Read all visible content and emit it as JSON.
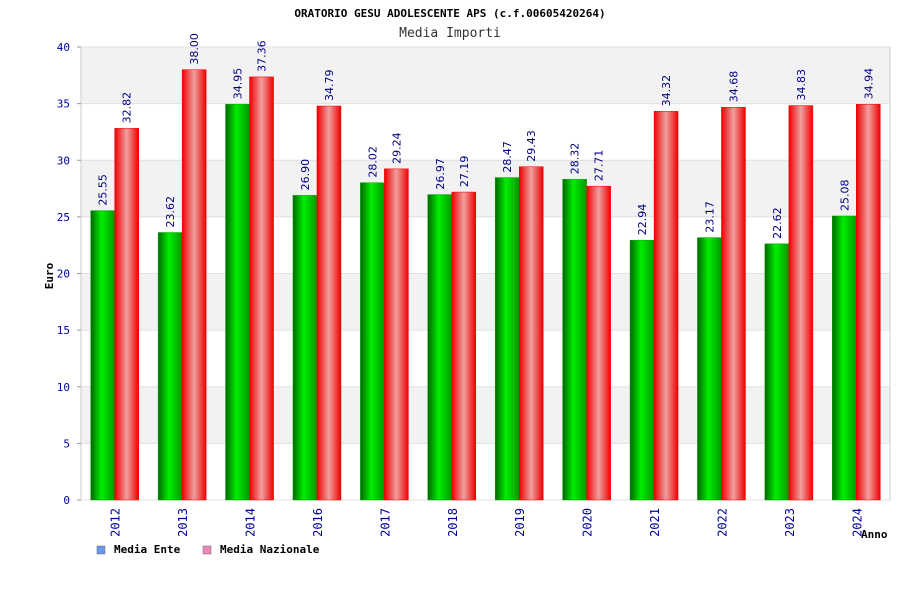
{
  "chart_data": {
    "type": "bar",
    "title": "ORATORIO GESU ADOLESCENTE APS (c.f.00605420264)",
    "subtitle": "Media Importi",
    "xlabel": "Anno",
    "ylabel": "Euro",
    "ylim": [
      0,
      40
    ],
    "yticks": [
      "0",
      "5",
      "10",
      "15",
      "20",
      "25",
      "30",
      "35",
      "40"
    ],
    "grid": true,
    "legend_position": "bottom-left",
    "categories": [
      "2012",
      "2013",
      "2014",
      "2016",
      "2017",
      "2018",
      "2019",
      "2020",
      "2021",
      "2022",
      "2023",
      "2024"
    ],
    "series": [
      {
        "name": "Media Ente",
        "color": "#00aa00",
        "legend_color": "#6699ee",
        "values": [
          25.55,
          23.62,
          34.95,
          26.9,
          28.02,
          26.97,
          28.47,
          28.32,
          22.94,
          23.17,
          22.62,
          25.08
        ],
        "labels": [
          "25.55",
          "23.62",
          "34.95",
          "26.90",
          "28.02",
          "26.97",
          "28.47",
          "28.32",
          "22.94",
          "23.17",
          "22.62",
          "25.08"
        ]
      },
      {
        "name": "Media Nazionale",
        "color": "#ee0000",
        "legend_color": "#ee88bb",
        "values": [
          32.82,
          38.0,
          37.36,
          34.79,
          29.24,
          27.19,
          29.43,
          27.71,
          34.32,
          34.68,
          34.83,
          34.94
        ],
        "labels": [
          "32.82",
          "38.00",
          "37.36",
          "34.79",
          "29.24",
          "27.19",
          "29.43",
          "27.71",
          "34.32",
          "34.68",
          "34.83",
          "34.94"
        ]
      }
    ]
  }
}
